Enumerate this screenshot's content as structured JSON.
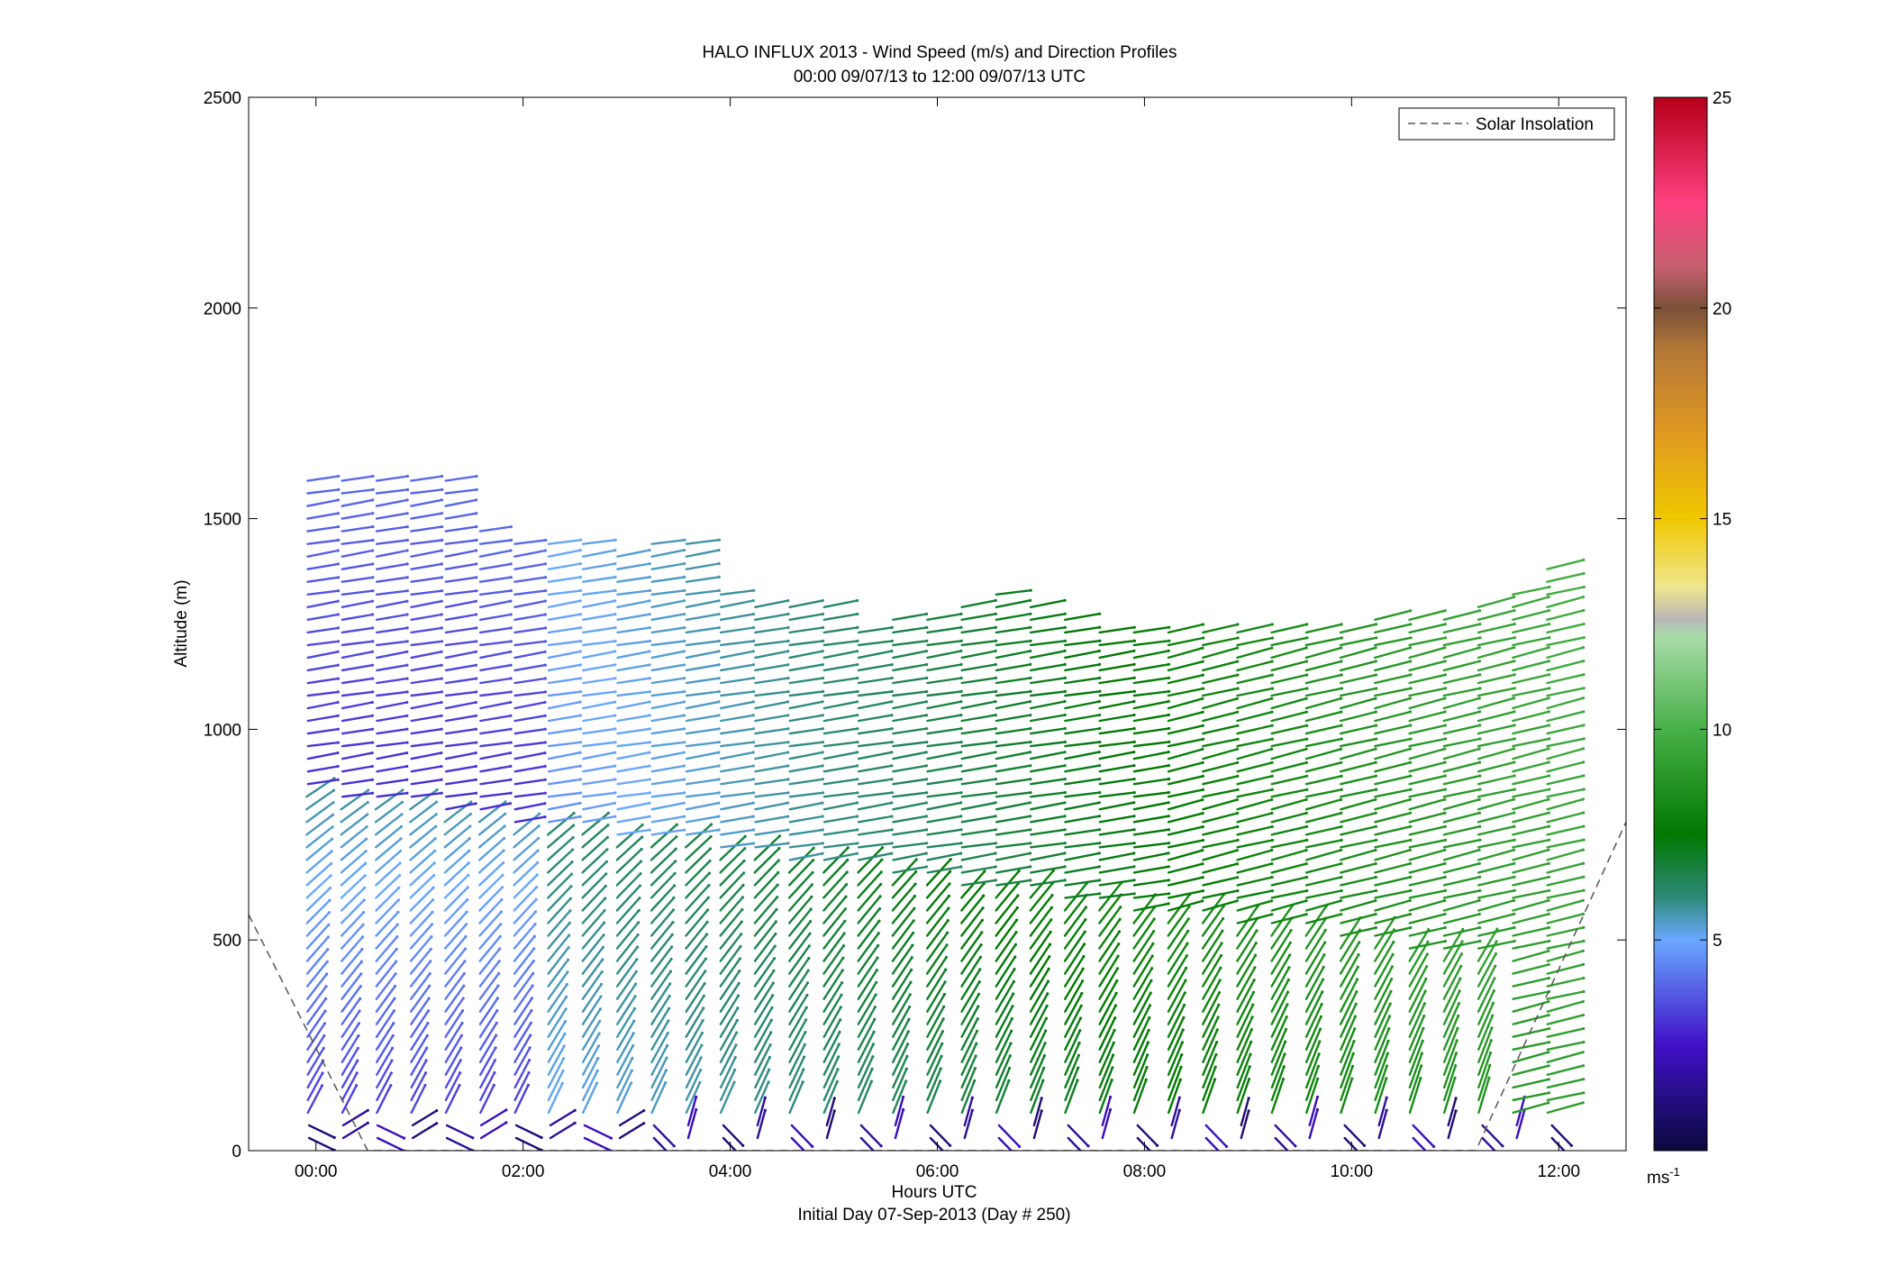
{
  "chart_data": {
    "type": "scatter",
    "title": "HALO INFLUX 2013 - Wind Speed (m/s) and Direction Profiles",
    "subtitle": "00:00 09/07/13 to 12:00 09/07/13  UTC",
    "xlabel": "Hours UTC",
    "xlabel2": "Initial Day 07-Sep-2013 (Day # 250)",
    "ylabel": "Altitude (m)",
    "xlim": [
      -0.65,
      12.65
    ],
    "ylim": [
      0,
      2500
    ],
    "x_ticks": [
      {
        "value": 0,
        "label": "00:00"
      },
      {
        "value": 2,
        "label": "02:00"
      },
      {
        "value": 4,
        "label": "04:00"
      },
      {
        "value": 6,
        "label": "06:00"
      },
      {
        "value": 8,
        "label": "08:00"
      },
      {
        "value": 10,
        "label": "10:00"
      },
      {
        "value": 12,
        "label": "12:00"
      }
    ],
    "y_ticks": [
      {
        "value": 0,
        "label": "0"
      },
      {
        "value": 500,
        "label": "500"
      },
      {
        "value": 1000,
        "label": "1000"
      },
      {
        "value": 1500,
        "label": "1500"
      },
      {
        "value": 2000,
        "label": "2000"
      },
      {
        "value": 2500,
        "label": "2500"
      }
    ],
    "legend": {
      "label": "Solar Insolation",
      "placement": "top-right",
      "style": "dashed",
      "color": "#555555"
    },
    "colorbar": {
      "range": [
        0,
        25
      ],
      "ticks": [
        {
          "value": 5,
          "label": "5"
        },
        {
          "value": 10,
          "label": "10"
        },
        {
          "value": 15,
          "label": "15"
        },
        {
          "value": 20,
          "label": "20"
        },
        {
          "value": 25,
          "label": "25"
        }
      ],
      "unit": "ms",
      "unit_exponent": "-1",
      "stops": [
        {
          "v": 0,
          "color": "#0a0a3c"
        },
        {
          "v": 2.5,
          "color": "#4010c8"
        },
        {
          "v": 5,
          "color": "#6aa8ff"
        },
        {
          "v": 6,
          "color": "#2e8a7a"
        },
        {
          "v": 7.5,
          "color": "#007800"
        },
        {
          "v": 10,
          "color": "#48b048"
        },
        {
          "v": 12.2,
          "color": "#a8dca8"
        },
        {
          "v": 12.6,
          "color": "#b8b8b8"
        },
        {
          "v": 13.4,
          "color": "#f0e68c"
        },
        {
          "v": 15,
          "color": "#f0c800"
        },
        {
          "v": 17,
          "color": "#e09a20"
        },
        {
          "v": 19,
          "color": "#b47838"
        },
        {
          "v": 20,
          "color": "#7a5038"
        },
        {
          "v": 21,
          "color": "#c86070"
        },
        {
          "v": 22.5,
          "color": "#ff4080"
        },
        {
          "v": 25,
          "color": "#b40018"
        }
      ]
    },
    "solar_insolation": [
      {
        "x": -0.65,
        "y": 560
      },
      {
        "x": 0.5,
        "y": 0
      },
      {
        "x": 11.2,
        "y": 0
      },
      {
        "x": 12.65,
        "y": 780
      }
    ],
    "profiles": {
      "times": [
        0.0,
        0.333,
        0.667,
        1.0,
        1.333,
        1.667,
        2.0,
        2.333,
        2.667,
        3.0,
        3.333,
        3.667,
        4.0,
        4.333,
        4.667,
        5.0,
        5.333,
        5.667,
        6.0,
        6.333,
        6.667,
        7.0,
        7.333,
        7.667,
        8.0,
        8.333,
        8.667,
        9.0,
        9.333,
        9.667,
        10.0,
        10.333,
        10.667,
        11.0,
        11.333,
        11.667,
        12.0
      ],
      "top_altitudes": [
        1610,
        1610,
        1610,
        1610,
        1610,
        1490,
        1450,
        1450,
        1440,
        1410,
        1450,
        1450,
        1330,
        1300,
        1290,
        1290,
        1250,
        1270,
        1270,
        1290,
        1320,
        1290,
        1260,
        1250,
        1250,
        1240,
        1250,
        1250,
        1250,
        1250,
        1250,
        1270,
        1280,
        1280,
        1300,
        1330,
        1400
      ],
      "level_spacing_m": 30
    }
  }
}
